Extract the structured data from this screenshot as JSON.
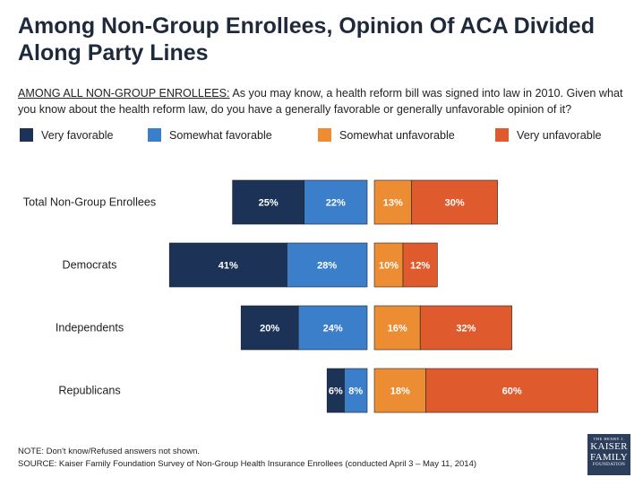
{
  "title": "Among Non-Group Enrollees, Opinion Of ACA Divided Along Party Lines",
  "question": {
    "lead": "AMONG ALL NON-GROUP ENROLLEES:",
    "text": " As you may know, a health reform bill was signed into law in 2010. Given what you know about the health reform law, do you have a generally favorable or generally unfavorable opinion of it?"
  },
  "colors": {
    "very_favorable": "#1c3256",
    "somewhat_favorable": "#3b7fcb",
    "somewhat_unfavorable": "#ec8d33",
    "very_unfavorable": "#df5b2e"
  },
  "legend": [
    {
      "key": "very_favorable",
      "label": "Very favorable"
    },
    {
      "key": "somewhat_favorable",
      "label": "Somewhat favorable"
    },
    {
      "key": "somewhat_unfavorable",
      "label": "Somewhat unfavorable"
    },
    {
      "key": "very_unfavorable",
      "label": "Very unfavorable"
    }
  ],
  "chart_data": {
    "type": "bar",
    "orientation": "horizontal-diverging",
    "categories": [
      "Total Non-Group Enrollees",
      "Democrats",
      "Independents",
      "Republicans"
    ],
    "series": [
      {
        "name": "Very favorable",
        "side": "favorable",
        "values": [
          25,
          41,
          20,
          6
        ]
      },
      {
        "name": "Somewhat favorable",
        "side": "favorable",
        "values": [
          22,
          28,
          24,
          8
        ]
      },
      {
        "name": "Somewhat unfavorable",
        "side": "unfavorable",
        "values": [
          13,
          10,
          16,
          18
        ]
      },
      {
        "name": "Very unfavorable",
        "side": "unfavorable",
        "values": [
          30,
          12,
          32,
          60
        ]
      }
    ],
    "value_suffix": "%",
    "legend_position": "top",
    "grid": false
  },
  "footer": {
    "note": "NOTE: Don't know/Refused answers not shown.",
    "source": "SOURCE: Kaiser Family Foundation Survey of Non-Group Health Insurance Enrollees (conducted April 3 – May 11, 2014)"
  },
  "logo": {
    "small": "THE HENRY J.",
    "line1": "KAISER",
    "line2": "FAMILY",
    "line3": "FOUNDATION"
  }
}
